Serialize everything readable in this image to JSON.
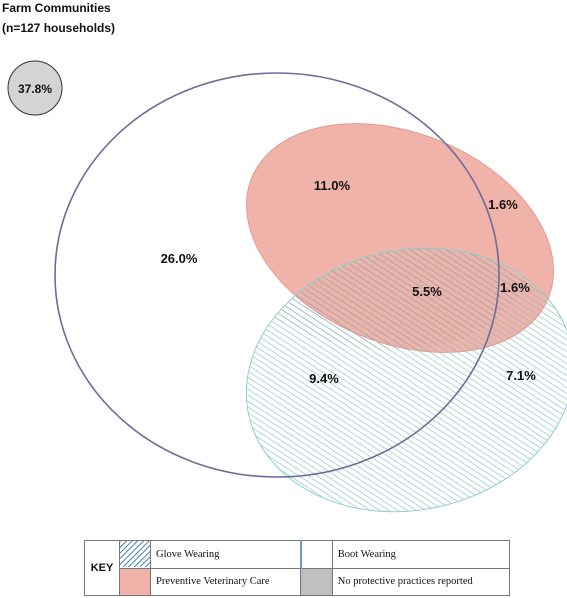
{
  "header": {
    "title": "Farm Communities",
    "subtitle": "(n=127 households)"
  },
  "diagram": {
    "none_reported": "37.8%",
    "regions": {
      "boot_only": "26.0%",
      "boot_vet": "11.0%",
      "vet_only": "1.6%",
      "all_three": "5.5%",
      "vet_glove": "1.6%",
      "boot_glove": "9.4%",
      "glove_only": "7.1%"
    }
  },
  "key": {
    "heading": "KEY",
    "items": [
      {
        "label": "Glove Wearing",
        "style": "hatched",
        "color": "#4d8fb3"
      },
      {
        "label": "Boot Wearing",
        "style": "outline",
        "color": "#6f6a9a"
      },
      {
        "label": "Preventive Veterinary Care",
        "style": "fill",
        "color": "#efb1a8"
      },
      {
        "label": "No protective practices reported",
        "style": "fill",
        "color": "#c0c0c0"
      }
    ]
  }
}
